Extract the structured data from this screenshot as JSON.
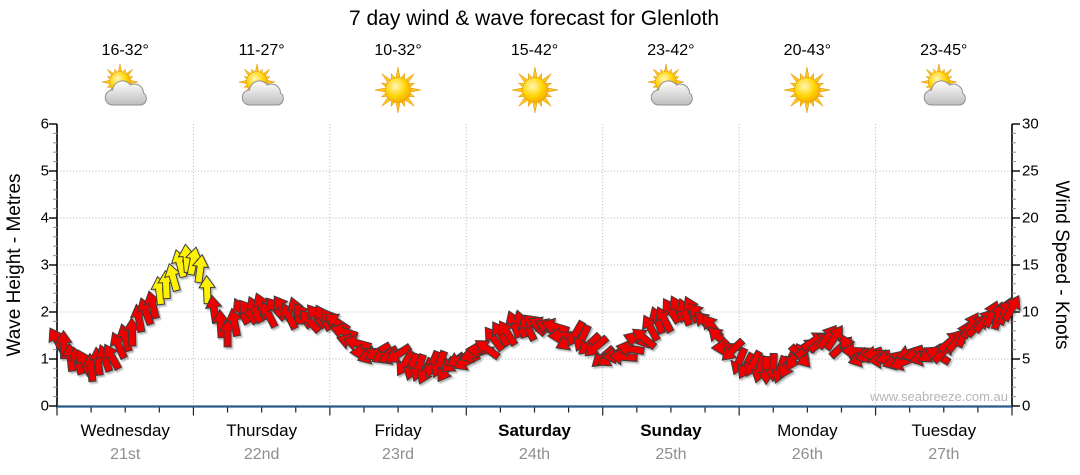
{
  "title": "7 day wind & wave forecast for Glenloth",
  "watermark": "www.seabreeze.com.au",
  "days": [
    {
      "name": "Wednesday",
      "date": "21st",
      "temp": "16-32°",
      "icon": "partly-cloudy",
      "weekend": false
    },
    {
      "name": "Thursday",
      "date": "22nd",
      "temp": "11-27°",
      "icon": "partly-cloudy",
      "weekend": false
    },
    {
      "name": "Friday",
      "date": "23rd",
      "temp": "10-32°",
      "icon": "sunny",
      "weekend": false
    },
    {
      "name": "Saturday",
      "date": "24th",
      "temp": "15-42°",
      "icon": "sunny",
      "weekend": true
    },
    {
      "name": "Sunday",
      "date": "25th",
      "temp": "23-42°",
      "icon": "partly-cloudy",
      "weekend": true
    },
    {
      "name": "Monday",
      "date": "26th",
      "temp": "20-43°",
      "icon": "sunny",
      "weekend": false
    },
    {
      "name": "Tuesday",
      "date": "27th",
      "temp": "23-45°",
      "icon": "partly-cloudy",
      "weekend": false
    }
  ],
  "left_axis": {
    "label": "Wave Height - Metres",
    "ticks": [
      0,
      1,
      2,
      3,
      4,
      5,
      6
    ],
    "range": [
      0,
      6
    ]
  },
  "right_axis": {
    "label": "Wind Speed - Knots",
    "ticks": [
      0,
      5,
      10,
      15,
      20,
      25,
      30
    ],
    "range": [
      0,
      30
    ]
  },
  "colors": {
    "arrow_red": "#ec0400",
    "arrow_yellow": "#fff200",
    "arrow_outline": "#3c3c3c",
    "axis_bottom": "#2a5a8a",
    "spine": "#000000",
    "grid": "#b4b4b4",
    "minor_tick": "#9a9a9a",
    "date_text": "#8e8e8e",
    "watermark_text": "#b5b5b5"
  },
  "chart_data": {
    "type": "wind-arrows",
    "title": "7 day wind & wave forecast for Glenloth",
    "x_unit": "hours",
    "x_range": [
      0,
      168
    ],
    "days_span_hours": 24,
    "tick_interval_hours": 6,
    "grid": true,
    "wind_knots_per_wave_metre": 5,
    "yellow_above_knots": 10.9,
    "arrow_step_hours": 1.2,
    "waypoints_legend": [
      "hour",
      "wind_knots",
      "direction_deg_cw_from_up"
    ],
    "waypoints": [
      [
        0,
        7,
        330
      ],
      [
        1,
        6.4,
        350
      ],
      [
        2,
        5.8,
        345
      ],
      [
        3,
        5,
        355
      ],
      [
        4,
        4.6,
        348
      ],
      [
        5,
        4.4,
        340
      ],
      [
        6,
        4.4,
        352
      ],
      [
        7,
        4.6,
        344
      ],
      [
        8,
        4.8,
        336
      ],
      [
        9,
        5.2,
        342
      ],
      [
        10,
        5.8,
        338
      ],
      [
        11,
        6.4,
        344
      ],
      [
        12,
        7.2,
        340
      ],
      [
        13,
        8,
        348
      ],
      [
        14,
        8.8,
        352
      ],
      [
        15,
        9.6,
        346
      ],
      [
        16,
        10.4,
        352
      ],
      [
        17,
        11.2,
        350
      ],
      [
        18,
        12,
        346
      ],
      [
        19,
        12.8,
        350
      ],
      [
        20,
        13.6,
        344
      ],
      [
        21,
        14.4,
        352
      ],
      [
        22,
        15.2,
        356
      ],
      [
        23,
        16,
        358
      ],
      [
        24,
        15.6,
        362
      ],
      [
        25,
        14.6,
        360
      ],
      [
        26,
        13.2,
        364
      ],
      [
        27,
        11.6,
        362
      ],
      [
        28,
        9.6,
        360
      ],
      [
        29,
        8.2,
        355
      ],
      [
        30,
        8,
        350
      ],
      [
        31,
        8.8,
        345
      ],
      [
        32,
        9.6,
        342
      ],
      [
        33,
        10.2,
        336
      ],
      [
        34,
        10.4,
        330
      ],
      [
        35,
        10.2,
        334
      ],
      [
        36,
        10.4,
        328
      ],
      [
        37,
        10,
        332
      ],
      [
        38,
        10.2,
        326
      ],
      [
        39,
        10.4,
        330
      ],
      [
        40,
        10.2,
        334
      ],
      [
        41,
        9.8,
        328
      ],
      [
        42,
        10,
        332
      ],
      [
        43,
        9.6,
        326
      ],
      [
        44,
        9.2,
        330
      ],
      [
        45,
        9.6,
        324
      ],
      [
        46,
        9.2,
        328
      ],
      [
        47,
        9.4,
        322
      ],
      [
        48,
        9.4,
        316
      ],
      [
        50,
        8.2,
        300
      ],
      [
        52,
        6.8,
        286
      ],
      [
        54,
        5.8,
        262
      ],
      [
        56,
        5.4,
        252
      ],
      [
        58,
        5.6,
        240
      ],
      [
        60,
        5.2,
        232
      ],
      [
        62,
        4.4,
        210
      ],
      [
        64,
        3.6,
        192
      ],
      [
        66,
        4.4,
        200
      ],
      [
        68,
        4,
        218
      ],
      [
        70,
        4.6,
        230
      ],
      [
        72,
        5,
        244
      ],
      [
        74,
        5.6,
        270
      ],
      [
        76,
        6.6,
        305
      ],
      [
        78,
        7.6,
        330
      ],
      [
        80,
        8.4,
        342
      ],
      [
        82,
        8.8,
        334
      ],
      [
        84,
        8.4,
        318
      ],
      [
        86,
        8.8,
        298
      ],
      [
        88,
        8,
        272
      ],
      [
        90,
        7,
        252
      ],
      [
        92,
        7.6,
        196
      ],
      [
        94,
        6.4,
        222
      ],
      [
        96,
        5.4,
        238
      ],
      [
        98,
        5,
        252
      ],
      [
        100,
        5.6,
        268
      ],
      [
        102,
        6.8,
        300
      ],
      [
        104,
        8,
        322
      ],
      [
        106,
        9.2,
        334
      ],
      [
        108,
        10,
        338
      ],
      [
        110,
        10.4,
        332
      ],
      [
        112,
        10,
        328
      ],
      [
        114,
        9.2,
        324
      ],
      [
        116,
        7.6,
        318
      ],
      [
        118,
        6.2,
        250
      ],
      [
        120,
        4.8,
        210
      ],
      [
        122,
        4.2,
        200
      ],
      [
        124,
        4,
        192
      ],
      [
        126,
        3.8,
        188
      ],
      [
        128,
        4.2,
        196
      ],
      [
        130,
        5,
        210
      ],
      [
        132,
        6.2,
        55
      ],
      [
        134,
        7,
        45
      ],
      [
        136,
        7.4,
        40
      ],
      [
        138,
        6.6,
        48
      ],
      [
        140,
        5.8,
        268
      ],
      [
        142,
        5.2,
        258
      ],
      [
        144,
        5.4,
        266
      ],
      [
        146,
        5,
        252
      ],
      [
        148,
        4.6,
        262
      ],
      [
        150,
        5.4,
        248
      ],
      [
        152,
        5.4,
        258
      ],
      [
        154,
        5.2,
        246
      ],
      [
        156,
        6,
        38
      ],
      [
        158,
        7,
        42
      ],
      [
        160,
        8,
        32
      ],
      [
        162,
        8.8,
        36
      ],
      [
        164,
        9.4,
        28
      ],
      [
        166,
        10,
        24
      ],
      [
        168,
        10.2,
        20
      ]
    ]
  }
}
